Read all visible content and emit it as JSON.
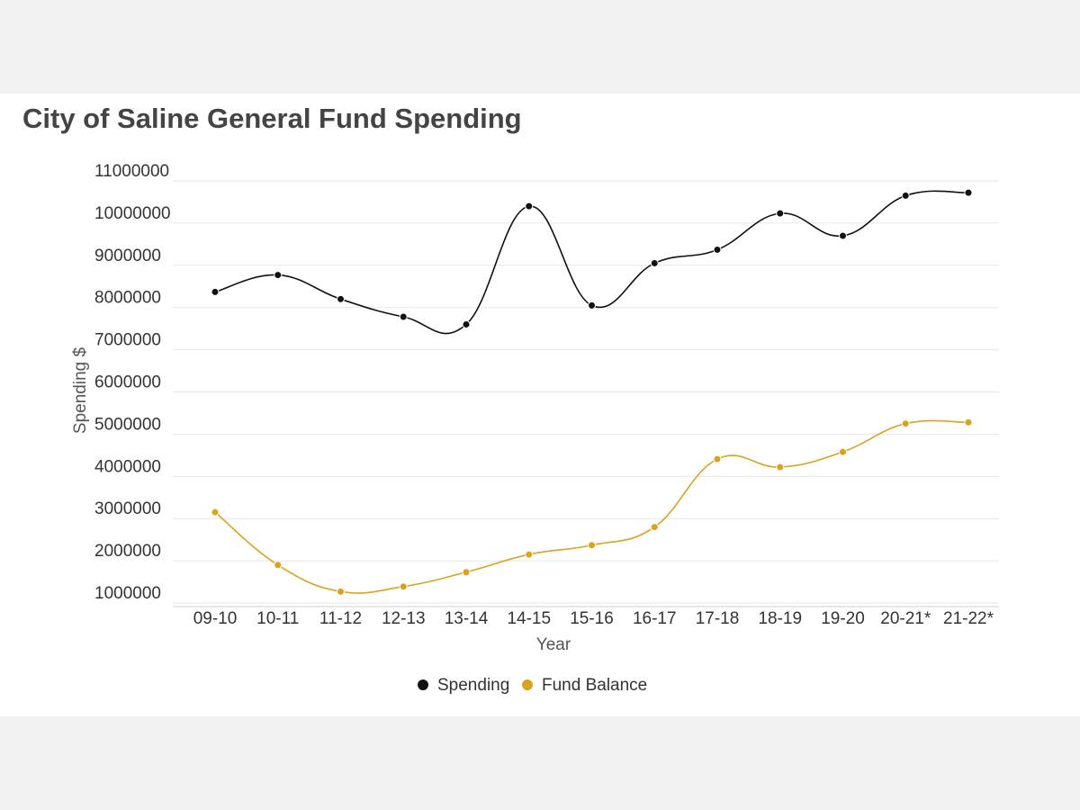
{
  "chart_data": {
    "type": "line",
    "title": "City of Saline General Fund Spending",
    "xlabel": "Year",
    "ylabel": "Spending $",
    "categories": [
      "09-10",
      "10-11",
      "11-12",
      "12-13",
      "13-14",
      "14-15",
      "15-16",
      "16-17",
      "17-18",
      "18-19",
      "19-20",
      "20-21*",
      "21-22*"
    ],
    "ylim": [
      1000000,
      11000000
    ],
    "yticks": [
      1000000,
      2000000,
      3000000,
      4000000,
      5000000,
      6000000,
      7000000,
      8000000,
      9000000,
      10000000,
      11000000
    ],
    "grid": true,
    "legend_position": "bottom-center",
    "series": [
      {
        "name": "Spending",
        "color": "#111111",
        "values": [
          8370000,
          8770000,
          8200000,
          7780000,
          7600000,
          10400000,
          8050000,
          9050000,
          9370000,
          10230000,
          9700000,
          10650000,
          10720000
        ]
      },
      {
        "name": "Fund Balance",
        "color": "#dba21e",
        "values": [
          3150000,
          1900000,
          1270000,
          1390000,
          1730000,
          2150000,
          2370000,
          2800000,
          4410000,
          4220000,
          4580000,
          5250000,
          5280000
        ]
      }
    ]
  }
}
